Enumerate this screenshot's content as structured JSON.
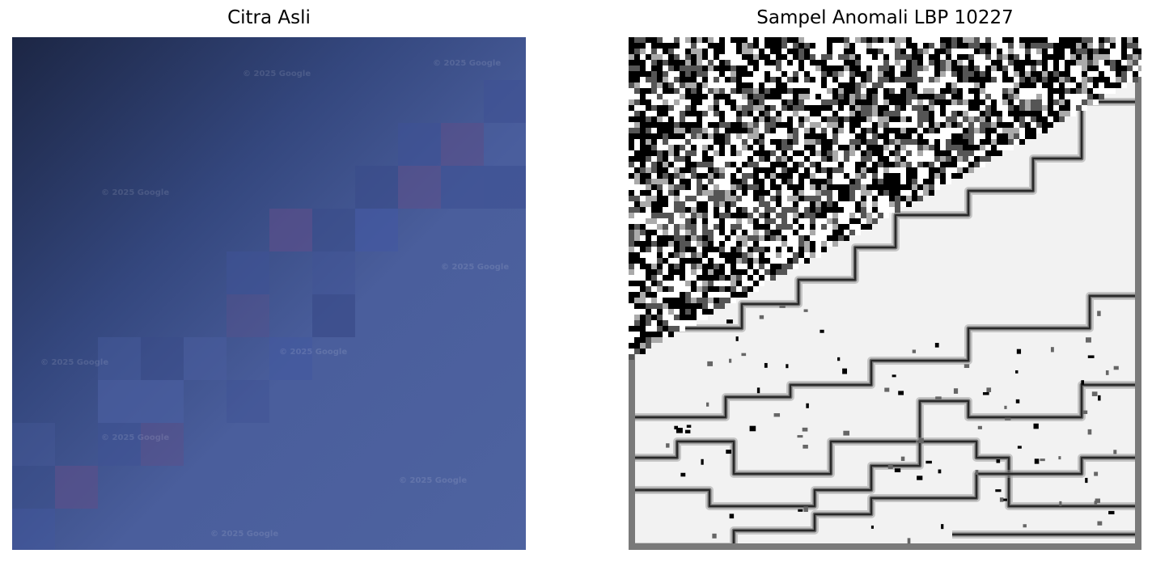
{
  "panels": [
    {
      "title": "Citra Asli",
      "image": "satellite-image-tile",
      "watermark": "© 2025 Google"
    },
    {
      "title": "Sampel Anomali LBP 10227",
      "image": "lbp-texture-map"
    }
  ],
  "colors": {
    "sky_top": "#1e2a48",
    "sky_mid": "#3c4f8c",
    "base": "#4d62a0",
    "lbp_light": "#f2f2f2",
    "lbp_dark": "#000000"
  }
}
